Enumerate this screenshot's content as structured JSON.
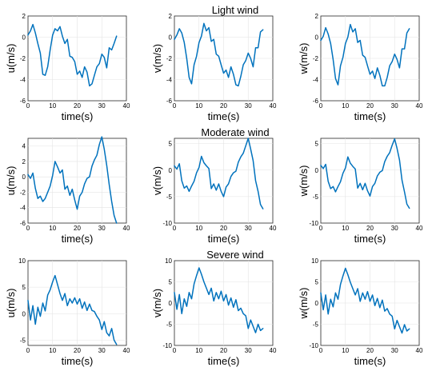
{
  "rows": [
    {
      "title": "Light wind"
    },
    {
      "title": "Moderate wind"
    },
    {
      "title": "Severe wind"
    }
  ],
  "line_color": "#0072BD",
  "chart_data": [
    {
      "type": "line",
      "panel": "Light wind u",
      "title": "",
      "xlabel": "time(s)",
      "ylabel": "u(m/s)",
      "xlim": [
        0,
        40
      ],
      "ylim": [
        -6,
        2
      ],
      "xticks": [
        0,
        10,
        20,
        30,
        40
      ],
      "yticks": [
        -6,
        -4,
        -2,
        0,
        2
      ],
      "grid": true,
      "x": [
        0,
        1,
        2,
        3,
        4,
        5,
        6,
        7,
        8,
        9,
        10,
        11,
        12,
        13,
        14,
        15,
        16,
        17,
        18,
        19,
        20,
        21,
        22,
        23,
        24,
        25,
        26,
        27,
        28,
        29,
        30,
        31,
        32,
        33,
        34,
        35,
        36
      ],
      "series": [
        {
          "values": [
            0.2,
            0.6,
            1.2,
            0.4,
            -0.6,
            -1.5,
            -3.5,
            -3.6,
            -2.8,
            -1.2,
            0.2,
            0.8,
            0.6,
            1.0,
            0.1,
            -0.6,
            -0.2,
            -1.8,
            -1.9,
            -2.3,
            -3.5,
            -3.2,
            -3.8,
            -2.8,
            -3.3,
            -4.6,
            -4.4,
            -3.6,
            -2.8,
            -2.5,
            -1.6,
            -1.9,
            -2.9,
            -1.0,
            -1.2,
            -0.6,
            0.1
          ]
        }
      ]
    },
    {
      "type": "line",
      "panel": "Light wind v",
      "title": "",
      "xlabel": "time(s)",
      "ylabel": "v(m/s)",
      "xlim": [
        0,
        40
      ],
      "ylim": [
        -6,
        2
      ],
      "xticks": [
        0,
        10,
        20,
        30,
        40
      ],
      "yticks": [
        -6,
        -4,
        -2,
        0,
        2
      ],
      "grid": true,
      "x": [
        0,
        1,
        2,
        3,
        4,
        5,
        6,
        7,
        8,
        9,
        10,
        11,
        12,
        13,
        14,
        15,
        16,
        17,
        18,
        19,
        20,
        21,
        22,
        23,
        24,
        25,
        26,
        27,
        28,
        29,
        30,
        31,
        32,
        33,
        34,
        35,
        36
      ],
      "series": [
        {
          "values": [
            -0.2,
            0.2,
            0.8,
            0.4,
            -0.5,
            -2.0,
            -3.8,
            -4.4,
            -2.6,
            -1.8,
            -0.5,
            0.1,
            1.3,
            0.6,
            0.9,
            -0.4,
            -0.2,
            -1.6,
            -1.8,
            -2.6,
            -3.4,
            -3.1,
            -3.8,
            -2.8,
            -3.5,
            -4.5,
            -4.6,
            -3.7,
            -2.6,
            -2.2,
            -1.5,
            -2.0,
            -2.8,
            -1.0,
            -1.0,
            0.5,
            0.7
          ]
        }
      ]
    },
    {
      "type": "line",
      "panel": "Light wind w",
      "title": "",
      "xlabel": "time(s)",
      "ylabel": "w(m/s)",
      "xlim": [
        0,
        40
      ],
      "ylim": [
        -6,
        2
      ],
      "xticks": [
        0,
        10,
        20,
        30,
        40
      ],
      "yticks": [
        -6,
        -4,
        -2,
        0,
        2
      ],
      "grid": true,
      "x": [
        0,
        1,
        2,
        3,
        4,
        5,
        6,
        7,
        8,
        9,
        10,
        11,
        12,
        13,
        14,
        15,
        16,
        17,
        18,
        19,
        20,
        21,
        22,
        23,
        24,
        25,
        26,
        27,
        28,
        29,
        30,
        31,
        32,
        33,
        34,
        35,
        36
      ],
      "series": [
        {
          "values": [
            -0.3,
            0.1,
            0.9,
            0.3,
            -0.6,
            -2.1,
            -3.9,
            -4.5,
            -2.7,
            -1.9,
            -0.6,
            0.0,
            1.2,
            0.5,
            0.8,
            -0.5,
            -0.3,
            -1.7,
            -1.9,
            -2.7,
            -3.5,
            -3.2,
            -3.9,
            -2.9,
            -3.6,
            -4.6,
            -4.6,
            -3.8,
            -2.7,
            -2.3,
            -1.6,
            -2.1,
            -2.9,
            -1.1,
            -1.1,
            0.4,
            0.8
          ]
        }
      ]
    },
    {
      "type": "line",
      "panel": "Moderate wind u",
      "title": "",
      "xlabel": "time(s)",
      "ylabel": "u(m/s)",
      "xlim": [
        0,
        40
      ],
      "ylim": [
        -6,
        5
      ],
      "xticks": [
        0,
        10,
        20,
        30,
        40
      ],
      "yticks": [
        -6,
        -4,
        -2,
        0,
        2,
        4
      ],
      "grid": true,
      "x": [
        0,
        1,
        2,
        3,
        4,
        5,
        6,
        7,
        8,
        9,
        10,
        11,
        12,
        13,
        14,
        15,
        16,
        17,
        18,
        19,
        20,
        21,
        22,
        23,
        24,
        25,
        26,
        27,
        28,
        29,
        30,
        31,
        32,
        33,
        34,
        35,
        36
      ],
      "series": [
        {
          "values": [
            0.3,
            -0.2,
            0.5,
            -1.5,
            -2.8,
            -2.5,
            -3.2,
            -2.8,
            -2.0,
            -1.2,
            0.2,
            2.0,
            1.3,
            0.5,
            0.9,
            -1.6,
            -1.2,
            -2.4,
            -1.6,
            -3.0,
            -4.2,
            -2.5,
            -2.0,
            -0.9,
            -0.2,
            0.0,
            1.4,
            2.2,
            2.8,
            4.2,
            5.2,
            3.6,
            1.5,
            -1.0,
            -3.2,
            -5.0,
            -6.0
          ]
        }
      ]
    },
    {
      "type": "line",
      "panel": "Moderate wind v",
      "title": "",
      "xlabel": "time(s)",
      "ylabel": "v(m/s)",
      "xlim": [
        0,
        40
      ],
      "ylim": [
        -10,
        6
      ],
      "xticks": [
        0,
        10,
        20,
        30,
        40
      ],
      "yticks": [
        -10,
        -5,
        0,
        5
      ],
      "grid": true,
      "x": [
        0,
        1,
        2,
        3,
        4,
        5,
        6,
        7,
        8,
        9,
        10,
        11,
        12,
        13,
        14,
        15,
        16,
        17,
        18,
        19,
        20,
        21,
        22,
        23,
        24,
        25,
        26,
        27,
        28,
        29,
        30,
        31,
        32,
        33,
        34,
        35,
        36
      ],
      "series": [
        {
          "values": [
            0.8,
            0.2,
            1.2,
            -2.0,
            -3.4,
            -3.0,
            -4.0,
            -3.0,
            -2.1,
            -0.5,
            0.5,
            2.6,
            1.4,
            0.8,
            0.3,
            -3.5,
            -2.6,
            -3.8,
            -2.6,
            -4.0,
            -5.0,
            -3.2,
            -2.6,
            -1.2,
            -0.5,
            -0.2,
            1.5,
            2.5,
            3.2,
            4.6,
            6.0,
            4.0,
            1.8,
            -2.0,
            -4.0,
            -6.5,
            -7.3
          ]
        }
      ]
    },
    {
      "type": "line",
      "panel": "Moderate wind w",
      "title": "",
      "xlabel": "time(s)",
      "ylabel": "w(m/s)",
      "xlim": [
        0,
        40
      ],
      "ylim": [
        -10,
        6
      ],
      "xticks": [
        0,
        10,
        20,
        30,
        40
      ],
      "yticks": [
        -10,
        -5,
        0,
        5
      ],
      "grid": true,
      "x": [
        0,
        1,
        2,
        3,
        4,
        5,
        6,
        7,
        8,
        9,
        10,
        11,
        12,
        13,
        14,
        15,
        16,
        17,
        18,
        19,
        20,
        21,
        22,
        23,
        24,
        25,
        26,
        27,
        28,
        29,
        30,
        31,
        32,
        33,
        34,
        35,
        36
      ],
      "series": [
        {
          "values": [
            0.9,
            0.3,
            1.1,
            -2.1,
            -3.5,
            -3.1,
            -4.1,
            -3.1,
            -2.2,
            -0.6,
            0.4,
            2.5,
            1.3,
            0.7,
            0.2,
            -3.4,
            -2.5,
            -3.7,
            -2.5,
            -3.9,
            -4.9,
            -3.1,
            -2.5,
            -1.1,
            -0.4,
            -0.1,
            1.6,
            2.6,
            3.3,
            4.7,
            5.9,
            4.1,
            1.9,
            -1.9,
            -4.1,
            -6.4,
            -7.2
          ]
        }
      ]
    },
    {
      "type": "line",
      "panel": "Severe wind u",
      "title": "",
      "xlabel": "time(s)",
      "ylabel": "u(m/s)",
      "xlim": [
        0,
        40
      ],
      "ylim": [
        -6,
        10
      ],
      "xticks": [
        0,
        10,
        20,
        30,
        40
      ],
      "yticks": [
        -5,
        0,
        5,
        10
      ],
      "grid": true,
      "x": [
        0,
        1,
        2,
        3,
        4,
        5,
        6,
        7,
        8,
        9,
        10,
        11,
        12,
        13,
        14,
        15,
        16,
        17,
        18,
        19,
        20,
        21,
        22,
        23,
        24,
        25,
        26,
        27,
        28,
        29,
        30,
        31,
        32,
        33,
        34,
        35,
        36
      ],
      "series": [
        {
          "values": [
            2.5,
            -1.2,
            1.5,
            -2.0,
            1.2,
            -0.5,
            2.0,
            0.5,
            3.5,
            4.5,
            6.0,
            7.2,
            5.5,
            3.8,
            2.5,
            3.8,
            1.5,
            2.8,
            2.0,
            3.0,
            1.8,
            2.8,
            1.0,
            2.2,
            0.6,
            1.8,
            0.6,
            0.4,
            -0.5,
            -1.2,
            -3.0,
            -1.5,
            -3.6,
            -4.2,
            -2.8,
            -5.0,
            -5.8
          ]
        }
      ]
    },
    {
      "type": "line",
      "panel": "Severe wind v",
      "title": "",
      "xlabel": "time(s)",
      "ylabel": "v(m/s)",
      "xlim": [
        0,
        40
      ],
      "ylim": [
        -10,
        10
      ],
      "xticks": [
        0,
        10,
        20,
        30,
        40
      ],
      "yticks": [
        -10,
        -5,
        0,
        5,
        10
      ],
      "grid": true,
      "x": [
        0,
        1,
        2,
        3,
        4,
        5,
        6,
        7,
        8,
        9,
        10,
        11,
        12,
        13,
        14,
        15,
        16,
        17,
        18,
        19,
        20,
        21,
        22,
        23,
        24,
        25,
        26,
        27,
        28,
        29,
        30,
        31,
        32,
        33,
        34,
        35,
        36
      ],
      "series": [
        {
          "values": [
            2.5,
            -1.5,
            2.0,
            -2.5,
            1.0,
            -0.8,
            2.5,
            1.0,
            4.5,
            6.5,
            8.3,
            6.8,
            5.0,
            3.5,
            2.0,
            3.5,
            0.5,
            2.5,
            1.0,
            2.8,
            0.5,
            2.0,
            -0.5,
            1.2,
            -1.0,
            0.8,
            -1.8,
            -1.2,
            -2.5,
            -3.0,
            -6.0,
            -4.0,
            -5.5,
            -7.0,
            -5.0,
            -6.5,
            -6.0
          ]
        }
      ]
    },
    {
      "type": "line",
      "panel": "Severe wind w",
      "title": "",
      "xlabel": "time(s)",
      "ylabel": "w(m/s)",
      "xlim": [
        0,
        40
      ],
      "ylim": [
        -10,
        10
      ],
      "xticks": [
        0,
        10,
        20,
        30,
        40
      ],
      "yticks": [
        -10,
        -5,
        0,
        5,
        10
      ],
      "grid": true,
      "x": [
        0,
        1,
        2,
        3,
        4,
        5,
        6,
        7,
        8,
        9,
        10,
        11,
        12,
        13,
        14,
        15,
        16,
        17,
        18,
        19,
        20,
        21,
        22,
        23,
        24,
        25,
        26,
        27,
        28,
        29,
        30,
        31,
        32,
        33,
        34,
        35,
        36
      ],
      "series": [
        {
          "values": [
            2.4,
            -1.6,
            1.9,
            -2.6,
            0.9,
            -0.9,
            2.4,
            0.9,
            4.4,
            6.4,
            8.2,
            6.7,
            4.9,
            3.4,
            1.9,
            3.4,
            0.4,
            2.4,
            0.9,
            2.7,
            0.4,
            1.9,
            -0.6,
            1.1,
            -1.1,
            0.7,
            -1.9,
            -1.3,
            -2.6,
            -3.1,
            -6.1,
            -4.1,
            -5.6,
            -7.1,
            -5.1,
            -6.6,
            -6.1
          ]
        }
      ]
    }
  ]
}
